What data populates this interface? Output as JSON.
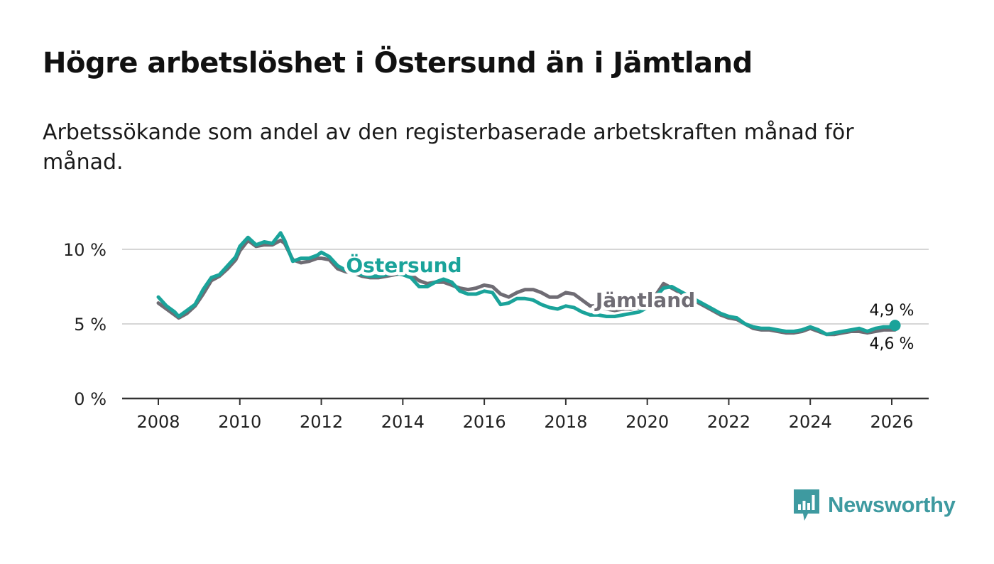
{
  "title": "Högre arbetslöshet i Östersund än i Jämtland",
  "subtitle": "Arbetssökande som andel av den registerbaserade arbetskraften månad för månad.",
  "brand": {
    "name": "Newsworthy",
    "icon": "newsworthy-logo-icon"
  },
  "colors": {
    "ostersund": "#1aa39a",
    "jamtland": "#6f6c74",
    "grid": "#d6d6d6",
    "axis": "#333333",
    "text": "#222222"
  },
  "chart_data": {
    "type": "line",
    "title": "Högre arbetslöshet i Östersund än i Jämtland",
    "xlabel": "",
    "ylabel": "",
    "xlim": [
      2007.8,
      2026.9
    ],
    "ylim": [
      0,
      10
    ],
    "grid": true,
    "x_ticks": [
      2008,
      2010,
      2012,
      2014,
      2016,
      2018,
      2020,
      2022,
      2024,
      2026
    ],
    "x_tick_labels": [
      "2008",
      "2010",
      "2012",
      "2014",
      "2016",
      "2018",
      "2020",
      "2022",
      "2024",
      "2026"
    ],
    "y_ticks": [
      0,
      5,
      10
    ],
    "y_tick_labels": [
      "0 %",
      "5 %",
      "10 %"
    ],
    "series": [
      {
        "name": "Jämtland",
        "label": "Jämtland",
        "x": [
          2008.0,
          2008.2,
          2008.4,
          2008.5,
          2008.7,
          2008.9,
          2009.1,
          2009.3,
          2009.5,
          2009.7,
          2009.9,
          2010.0,
          2010.2,
          2010.4,
          2010.6,
          2010.8,
          2011.0,
          2011.1,
          2011.3,
          2011.5,
          2011.7,
          2011.9,
          2012.0,
          2012.2,
          2012.4,
          2012.6,
          2012.8,
          2013.0,
          2013.2,
          2013.4,
          2013.6,
          2013.8,
          2014.0,
          2014.2,
          2014.4,
          2014.6,
          2014.8,
          2015.0,
          2015.2,
          2015.4,
          2015.6,
          2015.8,
          2016.0,
          2016.2,
          2016.4,
          2016.6,
          2016.8,
          2017.0,
          2017.2,
          2017.4,
          2017.6,
          2017.8,
          2018.0,
          2018.2,
          2018.4,
          2018.6,
          2018.8,
          2019.0,
          2019.2,
          2019.4,
          2019.6,
          2019.8,
          2020.0,
          2020.2,
          2020.4,
          2020.6,
          2020.8,
          2021.0,
          2021.2,
          2021.4,
          2021.6,
          2021.8,
          2022.0,
          2022.2,
          2022.4,
          2022.6,
          2022.8,
          2023.0,
          2023.2,
          2023.4,
          2023.6,
          2023.8,
          2024.0,
          2024.2,
          2024.4,
          2024.6,
          2024.8,
          2025.0,
          2025.2,
          2025.4,
          2025.6,
          2025.8,
          2026.0,
          2026.08
        ],
        "values": [
          6.4,
          6.0,
          5.6,
          5.4,
          5.7,
          6.2,
          7.0,
          7.9,
          8.2,
          8.7,
          9.3,
          9.9,
          10.6,
          10.2,
          10.3,
          10.3,
          10.6,
          10.4,
          9.3,
          9.1,
          9.2,
          9.4,
          9.4,
          9.3,
          8.7,
          8.5,
          8.4,
          8.2,
          8.1,
          8.1,
          8.2,
          8.3,
          8.4,
          8.3,
          7.9,
          7.7,
          7.8,
          7.8,
          7.6,
          7.4,
          7.3,
          7.4,
          7.6,
          7.5,
          7.0,
          6.8,
          7.1,
          7.3,
          7.3,
          7.1,
          6.8,
          6.8,
          7.1,
          7.0,
          6.6,
          6.2,
          6.2,
          6.0,
          5.9,
          6.0,
          6.0,
          6.1,
          6.3,
          6.9,
          7.7,
          7.4,
          7.1,
          6.9,
          6.5,
          6.2,
          5.9,
          5.6,
          5.4,
          5.3,
          5.0,
          4.7,
          4.6,
          4.6,
          4.5,
          4.4,
          4.4,
          4.5,
          4.7,
          4.5,
          4.3,
          4.3,
          4.4,
          4.5,
          4.5,
          4.4,
          4.5,
          4.6,
          4.6,
          4.6
        ]
      },
      {
        "name": "Östersund",
        "label": "Östersund",
        "x": [
          2008.0,
          2008.2,
          2008.4,
          2008.5,
          2008.7,
          2008.9,
          2009.1,
          2009.3,
          2009.5,
          2009.7,
          2009.9,
          2010.0,
          2010.2,
          2010.4,
          2010.6,
          2010.8,
          2011.0,
          2011.1,
          2011.3,
          2011.5,
          2011.7,
          2011.9,
          2012.0,
          2012.2,
          2012.4,
          2012.6,
          2012.8,
          2013.0,
          2013.2,
          2013.4,
          2013.6,
          2013.8,
          2014.0,
          2014.2,
          2014.4,
          2014.6,
          2014.8,
          2015.0,
          2015.2,
          2015.4,
          2015.6,
          2015.8,
          2016.0,
          2016.2,
          2016.4,
          2016.6,
          2016.8,
          2017.0,
          2017.2,
          2017.4,
          2017.6,
          2017.8,
          2018.0,
          2018.2,
          2018.4,
          2018.6,
          2018.8,
          2019.0,
          2019.2,
          2019.4,
          2019.6,
          2019.8,
          2020.0,
          2020.2,
          2020.4,
          2020.6,
          2020.8,
          2021.0,
          2021.2,
          2021.4,
          2021.6,
          2021.8,
          2022.0,
          2022.2,
          2022.4,
          2022.6,
          2022.8,
          2023.0,
          2023.2,
          2023.4,
          2023.6,
          2023.8,
          2024.0,
          2024.2,
          2024.4,
          2024.6,
          2024.8,
          2025.0,
          2025.2,
          2025.4,
          2025.6,
          2025.8,
          2026.0,
          2026.08
        ],
        "values": [
          6.8,
          6.2,
          5.8,
          5.5,
          5.9,
          6.3,
          7.3,
          8.1,
          8.3,
          8.9,
          9.5,
          10.2,
          10.8,
          10.3,
          10.5,
          10.4,
          11.1,
          10.6,
          9.2,
          9.4,
          9.4,
          9.6,
          9.8,
          9.5,
          8.9,
          8.6,
          8.5,
          8.3,
          8.2,
          8.2,
          8.3,
          8.4,
          8.3,
          8.1,
          7.5,
          7.5,
          7.8,
          8.0,
          7.8,
          7.2,
          7.0,
          7.0,
          7.2,
          7.1,
          6.3,
          6.4,
          6.7,
          6.7,
          6.6,
          6.3,
          6.1,
          6.0,
          6.2,
          6.1,
          5.8,
          5.6,
          5.6,
          5.5,
          5.5,
          5.6,
          5.7,
          5.8,
          6.1,
          6.8,
          7.4,
          7.5,
          7.2,
          6.9,
          6.6,
          6.3,
          6.0,
          5.7,
          5.5,
          5.4,
          5.0,
          4.8,
          4.7,
          4.7,
          4.6,
          4.5,
          4.5,
          4.6,
          4.8,
          4.6,
          4.3,
          4.4,
          4.5,
          4.6,
          4.7,
          4.5,
          4.7,
          4.8,
          4.8,
          4.9
        ]
      }
    ],
    "annotations": [
      {
        "text": "Östersund",
        "series": "Östersund",
        "x": 2013.8,
        "y": 8.8
      },
      {
        "text": "Jämtland",
        "series": "Jämtland",
        "x": 2019.4,
        "y": 6.5
      },
      {
        "text": "4,9 %",
        "series": "Östersund",
        "x": 2026.08,
        "y": 4.9
      },
      {
        "text": "4,6 %",
        "series": "Jämtland",
        "x": 2026.08,
        "y": 4.6
      }
    ]
  }
}
